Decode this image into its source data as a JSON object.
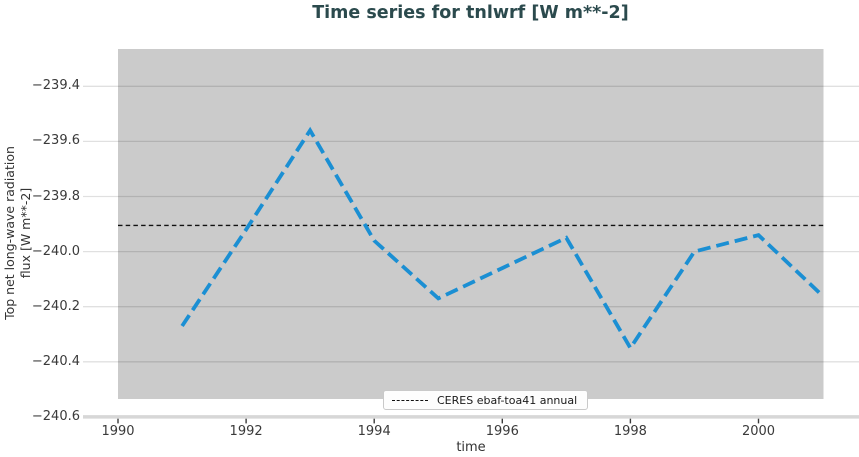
{
  "title": "Time series for tnlwrf [W m**-2]",
  "axes": {
    "ylabel": "Top net long-wave radiation\nflux [W m**-2]",
    "xlabel": "time"
  },
  "legend": {
    "label": "CERES ebaf-toa41 annual"
  },
  "colors": {
    "title": "#2b4a4d",
    "panel_background": "#cbcbcb",
    "gridline": "rgba(0,0,0,0.12)",
    "axis_band": "#d7d7d7",
    "tick": "#3a3a3a",
    "series_line": "#1b8fd3",
    "reference_line": "#111111"
  },
  "chart_data": {
    "type": "line",
    "title": "Time series for tnlwrf [W m**-2]",
    "xlabel": "time",
    "ylabel": "Top net long-wave radiation flux [W m**-2]",
    "x": [
      1991,
      1992,
      1993,
      1994,
      1995,
      1996,
      1997,
      1998,
      1999,
      2000,
      2001
    ],
    "series": [
      {
        "name": "tnlwrf",
        "values": [
          -240.27,
          -239.92,
          -239.56,
          -239.96,
          -240.17,
          -240.06,
          -239.95,
          -240.35,
          -240.0,
          -239.94,
          -240.16
        ],
        "color": "#1b8fd3",
        "line_style": "dashed"
      }
    ],
    "reference_line": {
      "label": "CERES ebaf-toa41 annual",
      "value": -239.905,
      "color": "#111111",
      "line_style": "dashed"
    },
    "xlim": [
      1989.45,
      2001.55
    ],
    "ylim": [
      -240.6,
      -239.27
    ],
    "x_ticks": [
      1990,
      1992,
      1994,
      1996,
      1998,
      2000
    ],
    "x_tick_labels": [
      "1990",
      "1992",
      "1994",
      "1996",
      "1998",
      "2000"
    ],
    "y_ticks": [
      -239.4,
      -239.6,
      -239.8,
      -240.0,
      -240.2,
      -240.4,
      -240.6
    ],
    "y_tick_labels": [
      "−239.4",
      "−239.6",
      "−239.8",
      "−240.0",
      "−240.2",
      "−240.4",
      "−240.6"
    ],
    "grid": true,
    "legend_position": "lower center"
  }
}
